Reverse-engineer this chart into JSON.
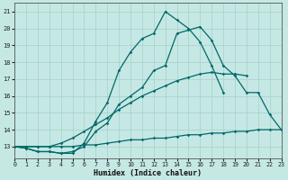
{
  "xlabel": "Humidex (Indice chaleur)",
  "xlim": [
    0,
    23
  ],
  "ylim": [
    12.3,
    21.5
  ],
  "yticks": [
    13,
    14,
    15,
    16,
    17,
    18,
    19,
    20,
    21
  ],
  "xticks": [
    0,
    1,
    2,
    3,
    4,
    5,
    6,
    7,
    8,
    9,
    10,
    11,
    12,
    13,
    14,
    15,
    16,
    17,
    18,
    19,
    20,
    21,
    22,
    23
  ],
  "background_color": "#c5e8e4",
  "grid_color": "#aad4cf",
  "line_color": "#006868",
  "lines": [
    {
      "x": [
        0,
        1,
        2,
        3,
        4,
        5,
        6,
        7,
        8,
        9,
        10,
        11,
        12,
        13,
        14,
        15,
        16,
        17,
        18,
        19,
        20,
        21
      ],
      "y": [
        13.0,
        12.9,
        12.7,
        12.7,
        12.6,
        12.6,
        13.2,
        14.5,
        15.6,
        17.5,
        18.6,
        19.4,
        19.7,
        21.0,
        20.5,
        20.0,
        19.2,
        17.8,
        16.2,
        null,
        null,
        null
      ]
    },
    {
      "x": [
        0,
        1,
        2,
        3,
        4,
        5,
        6,
        7,
        8,
        9,
        10,
        11,
        12,
        13,
        14,
        15,
        16,
        17,
        18,
        19,
        20,
        21,
        22,
        23
      ],
      "y": [
        13.0,
        12.9,
        12.7,
        12.7,
        12.6,
        12.7,
        13.0,
        13.9,
        14.4,
        15.5,
        16.0,
        16.5,
        17.5,
        17.8,
        19.7,
        19.9,
        20.1,
        19.3,
        17.8,
        17.2,
        16.2,
        16.2,
        14.9,
        14.0
      ]
    },
    {
      "comment": "curve 3 - diagonal from (0,13) to (20,17.2)",
      "x": [
        0,
        1,
        2,
        3,
        4,
        5,
        6,
        7,
        8,
        9,
        10,
        11,
        12,
        13,
        14,
        15,
        16,
        17,
        18,
        19,
        20
      ],
      "y": [
        13.0,
        13.0,
        13.0,
        13.0,
        13.2,
        13.5,
        13.9,
        14.3,
        14.7,
        15.2,
        15.6,
        16.0,
        16.3,
        16.6,
        16.9,
        17.1,
        17.3,
        17.4,
        17.3,
        17.3,
        17.2
      ]
    },
    {
      "x": [
        0,
        1,
        2,
        3,
        4,
        5,
        6,
        7,
        8,
        9,
        10,
        11,
        12,
        13,
        14,
        15,
        16,
        17,
        18,
        19,
        20,
        21,
        22,
        23
      ],
      "y": [
        13.0,
        13.0,
        13.0,
        13.0,
        13.0,
        13.0,
        13.1,
        13.1,
        13.2,
        13.3,
        13.4,
        13.4,
        13.5,
        13.5,
        13.6,
        13.7,
        13.7,
        13.8,
        13.8,
        13.9,
        13.9,
        14.0,
        14.0,
        14.0
      ]
    }
  ]
}
